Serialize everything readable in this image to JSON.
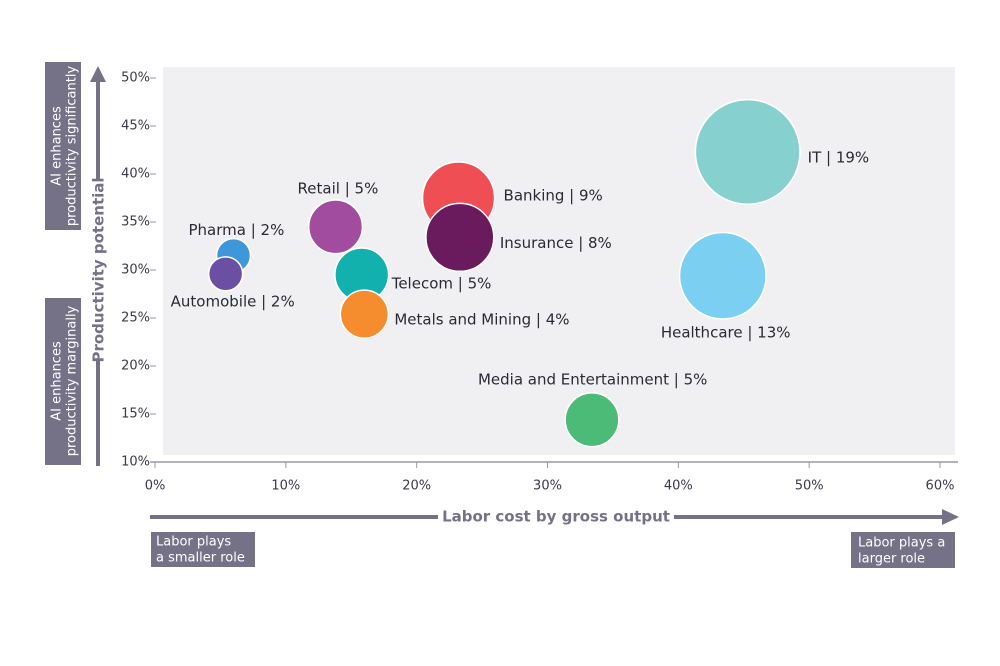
{
  "chart_data": {
    "type": "bubble",
    "x_label": "Labor cost by gross output",
    "y_label": "Productivity potential",
    "annotations": {
      "y_high": [
        "AI enhances",
        "productivity significantly"
      ],
      "y_low": [
        "AI enhances",
        "productivity marginally"
      ],
      "x_low": [
        "Labor plays",
        "a smaller role"
      ],
      "x_high": [
        "Labor plays a",
        "larger role"
      ]
    },
    "labels": [
      "IT | 19%",
      "Healthcare | 13%",
      "Banking | 9%",
      "Insurance | 8%",
      "Retail | 5%",
      "Telecom | 5%",
      "Metals and Mining | 4%",
      "Pharma | 2%",
      "Automobile | 2%",
      "Media and Entertainment | 5%"
    ],
    "x": [
      45.3,
      43.4,
      23.2,
      23.3,
      13.8,
      15.8,
      16.0,
      6.0,
      5.4,
      33.4
    ],
    "y": [
      42.3,
      29.4,
      37.5,
      33.4,
      34.5,
      29.5,
      25.4,
      31.5,
      29.6,
      14.4
    ],
    "sizes": [
      19,
      13,
      9,
      8,
      5,
      5,
      4,
      2,
      2,
      5
    ],
    "colors": [
      "#86d0cf",
      "#7bcff1",
      "#ef4e55",
      "#6a1b5e",
      "#a24c9f",
      "#13b1ad",
      "#f58d2f",
      "#3e97d8",
      "#6a4fa2",
      "#4bbb77"
    ],
    "xlim": [
      0,
      60
    ],
    "xticks": [
      {
        "value": 0,
        "label": "0%"
      },
      {
        "value": 10,
        "label": "10%"
      },
      {
        "value": 20,
        "label": "20%"
      },
      {
        "value": 30,
        "label": "30%"
      },
      {
        "value": 40,
        "label": "40%"
      },
      {
        "value": 50,
        "label": "50%"
      },
      {
        "value": 60,
        "label": "60%"
      }
    ],
    "ylim": [
      10,
      50
    ],
    "yticks": [
      {
        "value": 10,
        "label": "10%"
      },
      {
        "value": 15,
        "label": "15%"
      },
      {
        "value": 20,
        "label": "20%"
      },
      {
        "value": 25,
        "label": "25%"
      },
      {
        "value": 30,
        "label": "30%"
      },
      {
        "value": 35,
        "label": "35%"
      },
      {
        "value": 40,
        "label": "40%"
      },
      {
        "value": 45,
        "label": "45%"
      },
      {
        "value": 50,
        "label": "50%"
      }
    ]
  }
}
